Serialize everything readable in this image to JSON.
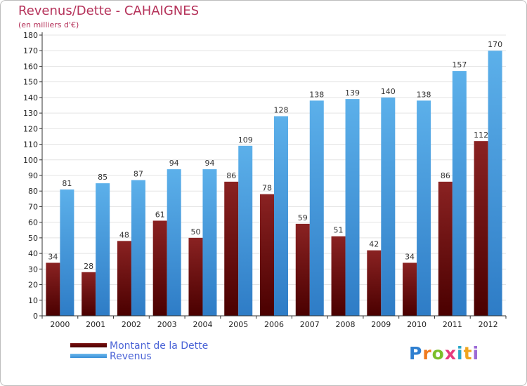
{
  "chart_data": {
    "type": "bar",
    "title": "Revenus/Dette - CAHAIGNES",
    "subtitle": "(en milliers d'€)",
    "xlabel": "",
    "ylabel": "",
    "ylim": [
      0,
      180
    ],
    "ytick_step": 10,
    "grid": true,
    "legend_position": "bottom-left",
    "categories": [
      "2000",
      "2001",
      "2002",
      "2003",
      "2004",
      "2005",
      "2006",
      "2007",
      "2008",
      "2009",
      "2010",
      "2011",
      "2012"
    ],
    "series": [
      {
        "name": "Montant de la Dette",
        "color": "#6e0e12",
        "values": [
          34,
          28,
          48,
          61,
          50,
          86,
          78,
          59,
          51,
          42,
          34,
          86,
          112
        ]
      },
      {
        "name": "Revenus",
        "color": "#4aa3e3",
        "values": [
          81,
          85,
          87,
          94,
          94,
          109,
          128,
          138,
          139,
          140,
          138,
          157,
          170
        ]
      }
    ]
  },
  "brand": {
    "logo_text": "Proxiti",
    "logo_colors": [
      "#2f7fd0",
      "#f07a1e",
      "#7bbf2a",
      "#e73c7e",
      "#2aa7c8",
      "#f0a51e",
      "#9c6ad6"
    ]
  }
}
